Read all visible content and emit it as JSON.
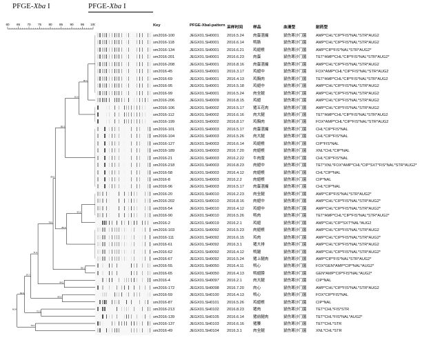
{
  "titles": {
    "left": "PFGE-",
    "left_italic": "Xba",
    "left_suffix": " I",
    "right": "PFGE-",
    "right_italic": "Xba",
    "right_suffix": " I"
  },
  "scale_labels": [
    "60",
    "65",
    "70",
    "75",
    "80",
    "85",
    "90",
    "95",
    "100"
  ],
  "columns": [
    "Key",
    "PFGE-XbaI-pattern",
    "采样时间",
    "样品",
    "血清型",
    "耐药型"
  ],
  "rows": [
    [
      "sm2016-100",
      "JEGX01.SH0001",
      "2016.5.24",
      "肉蛋混撮",
      "鼠伤寒沙门菌",
      "AMP*CHL*CIP*FIS*NAL*STR*AUG2"
    ],
    [
      "sm2016-118",
      "JEGX01.SH0001",
      "2016.6.14",
      "鸭肠",
      "鼠伤寒沙门菌",
      "AMP*CHL*CIP*FIS*NAL*STR*AUG2"
    ],
    [
      "sm2016-134",
      "JEGX01.SH0001",
      "2016.6.21",
      "鸡翅根",
      "鼠伤寒沙门菌",
      "AMP*CIP*FIS*NAL*STR*AUG2*"
    ],
    [
      "sm2016-201",
      "JEGX01.SH0001",
      "2016.6.23",
      "肉蛋",
      "鼠伤寒沙门菌",
      "TET*AMP*CHL*CIP*FIS*NAL*STR*AUG2*"
    ],
    [
      "sm2016-208",
      "JEGX01.SH0001",
      "2016.8.16",
      "肉蛋混撮",
      "鼠伤寒沙门菌",
      "AMP*CHL*CIP*FIS*NAL*STR*AUG2"
    ],
    [
      "sm2016-45",
      "JEGX01.SH0001",
      "2016.3.17",
      "鸡翅中",
      "鼠伤寒沙门菌",
      "FOX*AMP*CHL*CIP*FIS*NAL*STR*AUG2"
    ],
    [
      "sm2016-69",
      "JEGX01.SH0001",
      "2016.4.13",
      "鸡胸肉",
      "鼠伤寒沙门菌",
      "TET*AMP*CHL*CIP*FIS*NAL*STR*AUG2"
    ],
    [
      "sm2016-95",
      "JEGX01.SH0001",
      "2016.5.18",
      "鸡翅中",
      "鼠伤寒沙门菌",
      "AMP*CHL*CIP*FIS*NAL*STR*AUG2"
    ],
    [
      "sm2016-99",
      "JEGX01.SH0001",
      "2016.5.24",
      "肉全腿",
      "鼠伤寒沙门菌",
      "AMP*CHL*CIP*FIS*NAL*STR*AUG2"
    ],
    [
      "sm2016-206",
      "JEGX01.SH0009",
      "2016.8.15",
      "鸡翅",
      "鼠伤寒沙门菌",
      "AMP*CHL*CIP*FIS*NAL*STR*AUG2"
    ],
    [
      "sm2016-106",
      "JEGX01.SH0002",
      "2016.5.17",
      "猪五花肉",
      "鼠伤寒沙门菌",
      "AMP*CHL*CIP*FIS*NAL*STR*AUG2"
    ],
    [
      "sm2016-112",
      "JEGX01.SH0002",
      "2016.6.16",
      "肉大腿",
      "鼠伤寒沙门菌",
      "TET*AMP*CHL*CIP*FIS*NAL*STR*AUG2"
    ],
    [
      "sm2016-199",
      "JEGX01.SH0002",
      "2016.8.17",
      "鸡胸肉",
      "鼠伤寒沙门菌",
      "FOX*AMP*CHL*CIP*FIS*NAL*STR*AUG2"
    ],
    [
      "sm2016-101",
      "JEGX01.SH0003",
      "2016.5.17",
      "肉蛋混撮",
      "鼠伤寒沙门菌",
      "CHL*CIP*FIS*NAL"
    ],
    [
      "sm2016-104",
      "JEGX01.SH0003",
      "2016.5.26",
      "肉大腿",
      "鼠伤寒沙门菌",
      "CHL*CIP*FIS*NAL"
    ],
    [
      "sm2016-127",
      "JEGX01.SH0003",
      "2016.6.14",
      "鸡翅根",
      "鼠伤寒沙门菌",
      "CIP*FIS*NAL"
    ],
    [
      "sm2016-189",
      "JEGX01.SH0003",
      "2016.7.20",
      "肉翅根",
      "鼠伤寒沙门菌",
      "XNL*CHL*CIP*NAL"
    ],
    [
      "sm2016-21",
      "JEGX01.SH0003",
      "2016.2.22",
      "牛肉糜",
      "鼠伤寒沙门菌",
      "CHL*CIP*FIS*NAL"
    ],
    [
      "sm2016-218",
      "JEGX01.SH0003",
      "2016.8.23",
      "肉翅中",
      "鼠伤寒沙门菌",
      "TET*XNL*FOX*AMP*CHL*CIP*SXT*FIS*NAL*STR*AUG2*"
    ],
    [
      "sm2016-58",
      "JEGX01.SH0003",
      "2016.4.12",
      "肉翅根",
      "鼠伤寒沙门菌",
      "CHL*CIP*NAL"
    ],
    [
      "sm2016-8",
      "JEGX01.SH0003",
      "2016.2.2",
      "肉翅根",
      "鼠伤寒沙门菌",
      "CIP*NAL"
    ],
    [
      "sm2016-96",
      "JEGX01.SH0003",
      "2016.5.17",
      "肉蛋混撮",
      "鼠伤寒沙门菌",
      "CHL*CIP*NAL"
    ],
    [
      "sm2016-20",
      "JEGX01.SH0010",
      "2016.2.23",
      "肉全腿",
      "鼠伤寒沙门菌",
      "AMP*CIP*FIS*NAL*STR*AUG2*"
    ],
    [
      "sm2016-202",
      "JEGX01.SH0010",
      "2016.8.16",
      "肉翅中",
      "鼠伤寒沙门菌",
      "AMP*CHL*CIP*FIS*NAL*STR*AUG2*"
    ],
    [
      "sm2016-54",
      "JEGX01.SH0010",
      "2016.4.12",
      "鸡翅中",
      "鼠伤寒沙门菌",
      "AMP*CHL*CIP*FIS*NAL*STR*AUG2*"
    ],
    [
      "sm2016-90",
      "JEGX01.SH0010",
      "2016.5.26",
      "鸭肉",
      "鼠伤寒沙门菌",
      "TET*AMP*CHL*CIP*FIS*NAL*STR*AUG2*"
    ],
    [
      "sm2016-2",
      "JEGX01.SH0019",
      "2016.2.1",
      "鸡翅",
      "鼠伤寒沙门菌",
      "AMP*CHL*CIP*SXT*NAL*AUG2"
    ],
    [
      "sm2016-103",
      "JEGX01.SH0092",
      "2016.5.23",
      "肉翅根",
      "鼠伤寒沙门菌",
      "AMP*CHL*CIP*FIS*NAL*STR*AUG2"
    ],
    [
      "sm2016-111",
      "JEGX01.SH0092",
      "2016.6.15",
      "鸡肉",
      "鼠伤寒沙门菌",
      "AMP*CHL*CIP*FIS*NAL*STR*AUG2*"
    ],
    [
      "sm2016-61",
      "JEGX01.SH0092",
      "2016.3.1",
      "猪大排",
      "鼠伤寒沙门菌",
      "AMP*CHL*CIP*FIS*NAL*STR*AUG2"
    ],
    [
      "sm2016-62",
      "JEGX01.SH0092",
      "2016.4.12",
      "鸭腿",
      "鼠伤寒沙门菌",
      "AMP*CHL*CIP*FIS*NAL*STR*AUG2*"
    ],
    [
      "sm2016-67",
      "JEGX01.SH0092",
      "2016.5.24",
      "猪上腿肉",
      "鼠伤寒沙门菌",
      "AMP*CIP*FIS*NAL*STR*AUG2*"
    ],
    [
      "sm2016-55",
      "JEGX01.SH0050",
      "2016.4.11",
      "鸭心",
      "鼠伤寒沙门菌",
      "FOX*GEN*AMP*CIP*NAL*AUG2*"
    ],
    [
      "sm2016-65",
      "JEGX01.SH0050",
      "2016.4.13",
      "鸭翅膀",
      "鼠伤寒沙门菌",
      "GEN*AMP*CIP*FIS*NAL*AUG2*"
    ],
    [
      "sm2016-4",
      "JEGX01.SH0097",
      "2016.2.1",
      "肉大腿",
      "鼠伤寒沙门菌",
      "CIP*NAL"
    ],
    [
      "sm2016-172",
      "JEGX01.SH0098",
      "2016.7.20",
      "肉心",
      "鼠伤寒沙门菌",
      "AMP*CHL*CIP*FIS*NAL*STR*AUG2"
    ],
    [
      "sm2016-59",
      "JEGX01.SH0100",
      "2016.4.13",
      "鸭心",
      "鼠伤寒沙门菌",
      "FOX*CIP*FIS*NAL"
    ],
    [
      "sm2016-87",
      "JEGX01.SH0101",
      "2016.5.26",
      "鸡翅根",
      "鼠伤寒沙门菌",
      "CIP*NAL"
    ],
    [
      "sm2016-213",
      "JEGX01.SH0102",
      "2016.8.23",
      "猪肉",
      "鼠伤寒沙门菌",
      "TET*CHL*FIS*STR"
    ],
    [
      "sm2016-139",
      "JEGX01.SH0105",
      "2016.6.14",
      "猪前腿肉",
      "鼠伤寒沙门菌",
      "TET*CHL*FIS*NAL*AUG2*"
    ],
    [
      "sm2016-137",
      "JEGX01.SH0103",
      "2016.6.16",
      "猪腰",
      "鼠伤寒沙门菌",
      "TET*CHL*STR"
    ],
    [
      "sm2016-49",
      "JEGX01.SH0104",
      "2016.3.1",
      "肉全腿",
      "鼠伤寒沙门菌",
      "XNL*CHL*STR"
    ]
  ],
  "node_labels": [
    "100",
    "100",
    "100",
    "96.4",
    "91.9",
    "95.1",
    "93.2",
    "85.0",
    "85.6",
    "84.5",
    "80.0",
    "83.5",
    "78.9",
    "78.9",
    "71.3",
    "64.7",
    "72.9",
    "70.0",
    "67.7",
    "64.6",
    "60.8"
  ]
}
